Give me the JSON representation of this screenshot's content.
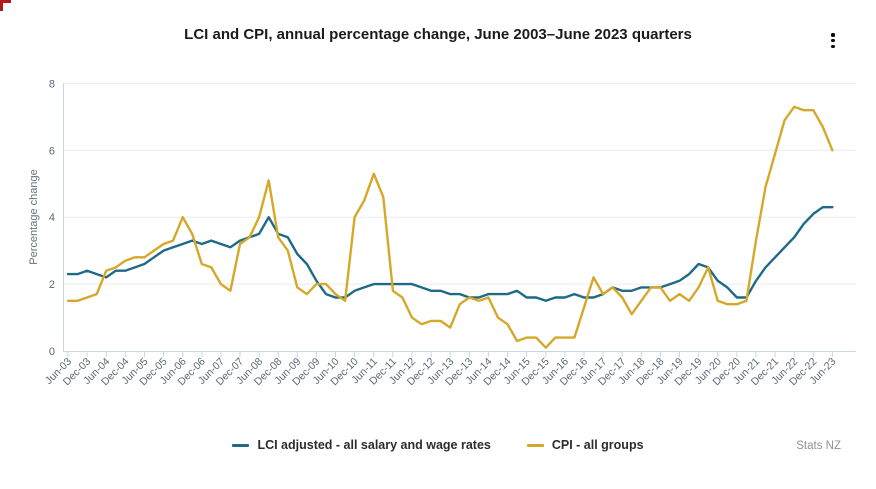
{
  "attribution": "Stats NZ",
  "chart_data": {
    "type": "line",
    "title": "LCI and CPI, annual percentage change, June 2003–June 2023 quarters",
    "ylabel": "Percentage change",
    "ylim": [
      0,
      8
    ],
    "yticks": [
      0,
      2,
      4,
      6,
      8
    ],
    "x_tick_every": 2,
    "grid": "horizontal",
    "legend_position": "bottom",
    "axis_color": "#c8d5e4",
    "grid_color": "#ebebeb",
    "tick_label_color": "#5c6876",
    "quarters": [
      "Jun-03",
      "Sep-03",
      "Dec-03",
      "Mar-04",
      "Jun-04",
      "Sep-04",
      "Dec-04",
      "Mar-05",
      "Jun-05",
      "Sep-05",
      "Dec-05",
      "Mar-06",
      "Jun-06",
      "Sep-06",
      "Dec-06",
      "Mar-07",
      "Jun-07",
      "Sep-07",
      "Dec-07",
      "Mar-08",
      "Jun-08",
      "Sep-08",
      "Dec-08",
      "Mar-09",
      "Jun-09",
      "Sep-09",
      "Dec-09",
      "Mar-10",
      "Jun-10",
      "Sep-10",
      "Dec-10",
      "Mar-11",
      "Jun-11",
      "Sep-11",
      "Dec-11",
      "Mar-12",
      "Jun-12",
      "Sep-12",
      "Dec-12",
      "Mar-13",
      "Jun-13",
      "Sep-13",
      "Dec-13",
      "Mar-14",
      "Jun-14",
      "Sep-14",
      "Dec-14",
      "Mar-15",
      "Jun-15",
      "Sep-15",
      "Dec-15",
      "Mar-16",
      "Jun-16",
      "Sep-16",
      "Dec-16",
      "Mar-17",
      "Jun-17",
      "Sep-17",
      "Dec-17",
      "Mar-18",
      "Jun-18",
      "Sep-18",
      "Dec-18",
      "Mar-19",
      "Jun-19",
      "Sep-19",
      "Dec-19",
      "Mar-20",
      "Jun-20",
      "Sep-20",
      "Dec-20",
      "Mar-21",
      "Jun-21",
      "Sep-21",
      "Dec-21",
      "Mar-22",
      "Jun-22",
      "Sep-22",
      "Dec-22",
      "Mar-23",
      "Jun-23"
    ],
    "series": [
      {
        "name": "LCI adjusted - all salary and wage rates",
        "color": "#1e6a87",
        "values": [
          2.3,
          2.3,
          2.4,
          2.3,
          2.2,
          2.4,
          2.4,
          2.5,
          2.6,
          2.8,
          3.0,
          3.1,
          3.2,
          3.3,
          3.2,
          3.3,
          3.2,
          3.1,
          3.3,
          3.4,
          3.5,
          4.0,
          3.5,
          3.4,
          2.9,
          2.6,
          2.1,
          1.7,
          1.6,
          1.6,
          1.8,
          1.9,
          2.0,
          2.0,
          2.0,
          2.0,
          2.0,
          1.9,
          1.8,
          1.8,
          1.7,
          1.7,
          1.6,
          1.6,
          1.7,
          1.7,
          1.7,
          1.8,
          1.6,
          1.6,
          1.5,
          1.6,
          1.6,
          1.7,
          1.6,
          1.6,
          1.7,
          1.9,
          1.8,
          1.8,
          1.9,
          1.9,
          1.9,
          2.0,
          2.1,
          2.3,
          2.6,
          2.5,
          2.1,
          1.9,
          1.6,
          1.6,
          2.1,
          2.5,
          2.8,
          3.1,
          3.4,
          3.8,
          4.1,
          4.3,
          4.3
        ]
      },
      {
        "name": "CPI - all groups",
        "color": "#d5a82a",
        "values": [
          1.5,
          1.5,
          1.6,
          1.7,
          2.4,
          2.5,
          2.7,
          2.8,
          2.8,
          3.0,
          3.2,
          3.3,
          4.0,
          3.5,
          2.6,
          2.5,
          2.0,
          1.8,
          3.2,
          3.4,
          4.0,
          5.1,
          3.4,
          3.0,
          1.9,
          1.7,
          2.0,
          2.0,
          1.7,
          1.5,
          4.0,
          4.5,
          5.3,
          4.6,
          1.8,
          1.6,
          1.0,
          0.8,
          0.9,
          0.9,
          0.7,
          1.4,
          1.6,
          1.5,
          1.6,
          1.0,
          0.8,
          0.3,
          0.4,
          0.4,
          0.1,
          0.4,
          0.4,
          0.4,
          1.3,
          2.2,
          1.7,
          1.9,
          1.6,
          1.1,
          1.5,
          1.9,
          1.9,
          1.5,
          1.7,
          1.5,
          1.9,
          2.5,
          1.5,
          1.4,
          1.4,
          1.5,
          3.3,
          4.9,
          5.9,
          6.9,
          7.3,
          7.2,
          7.2,
          6.7,
          6.0
        ]
      }
    ]
  }
}
